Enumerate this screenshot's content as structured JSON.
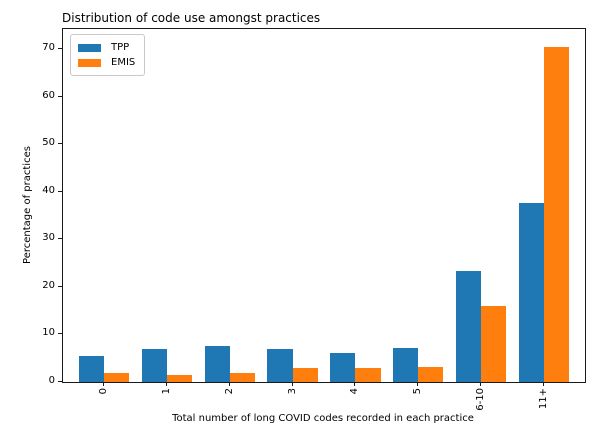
{
  "chart_data": {
    "type": "bar",
    "title": "Distribution of code use amongst practices",
    "xlabel": "Total number of long COVID codes recorded in each practice",
    "ylabel": "Percentage of practices",
    "categories": [
      "0",
      "1",
      "2",
      "3",
      "4",
      "5",
      "6-10",
      "11+"
    ],
    "series": [
      {
        "name": "TPP",
        "color": "#1f77b4",
        "values": [
          5.4,
          6.9,
          7.5,
          6.9,
          6.1,
          7.1,
          23.3,
          37.6
        ]
      },
      {
        "name": "EMIS",
        "color": "#ff7f0e",
        "values": [
          2.0,
          1.4,
          2.0,
          3.0,
          2.9,
          3.2,
          16.0,
          70.4
        ]
      }
    ],
    "ylim": [
      0,
      74.2
    ],
    "yticks": [
      0,
      10,
      20,
      30,
      40,
      50,
      60,
      70
    ],
    "legend_position": "upper left",
    "grid": false
  }
}
